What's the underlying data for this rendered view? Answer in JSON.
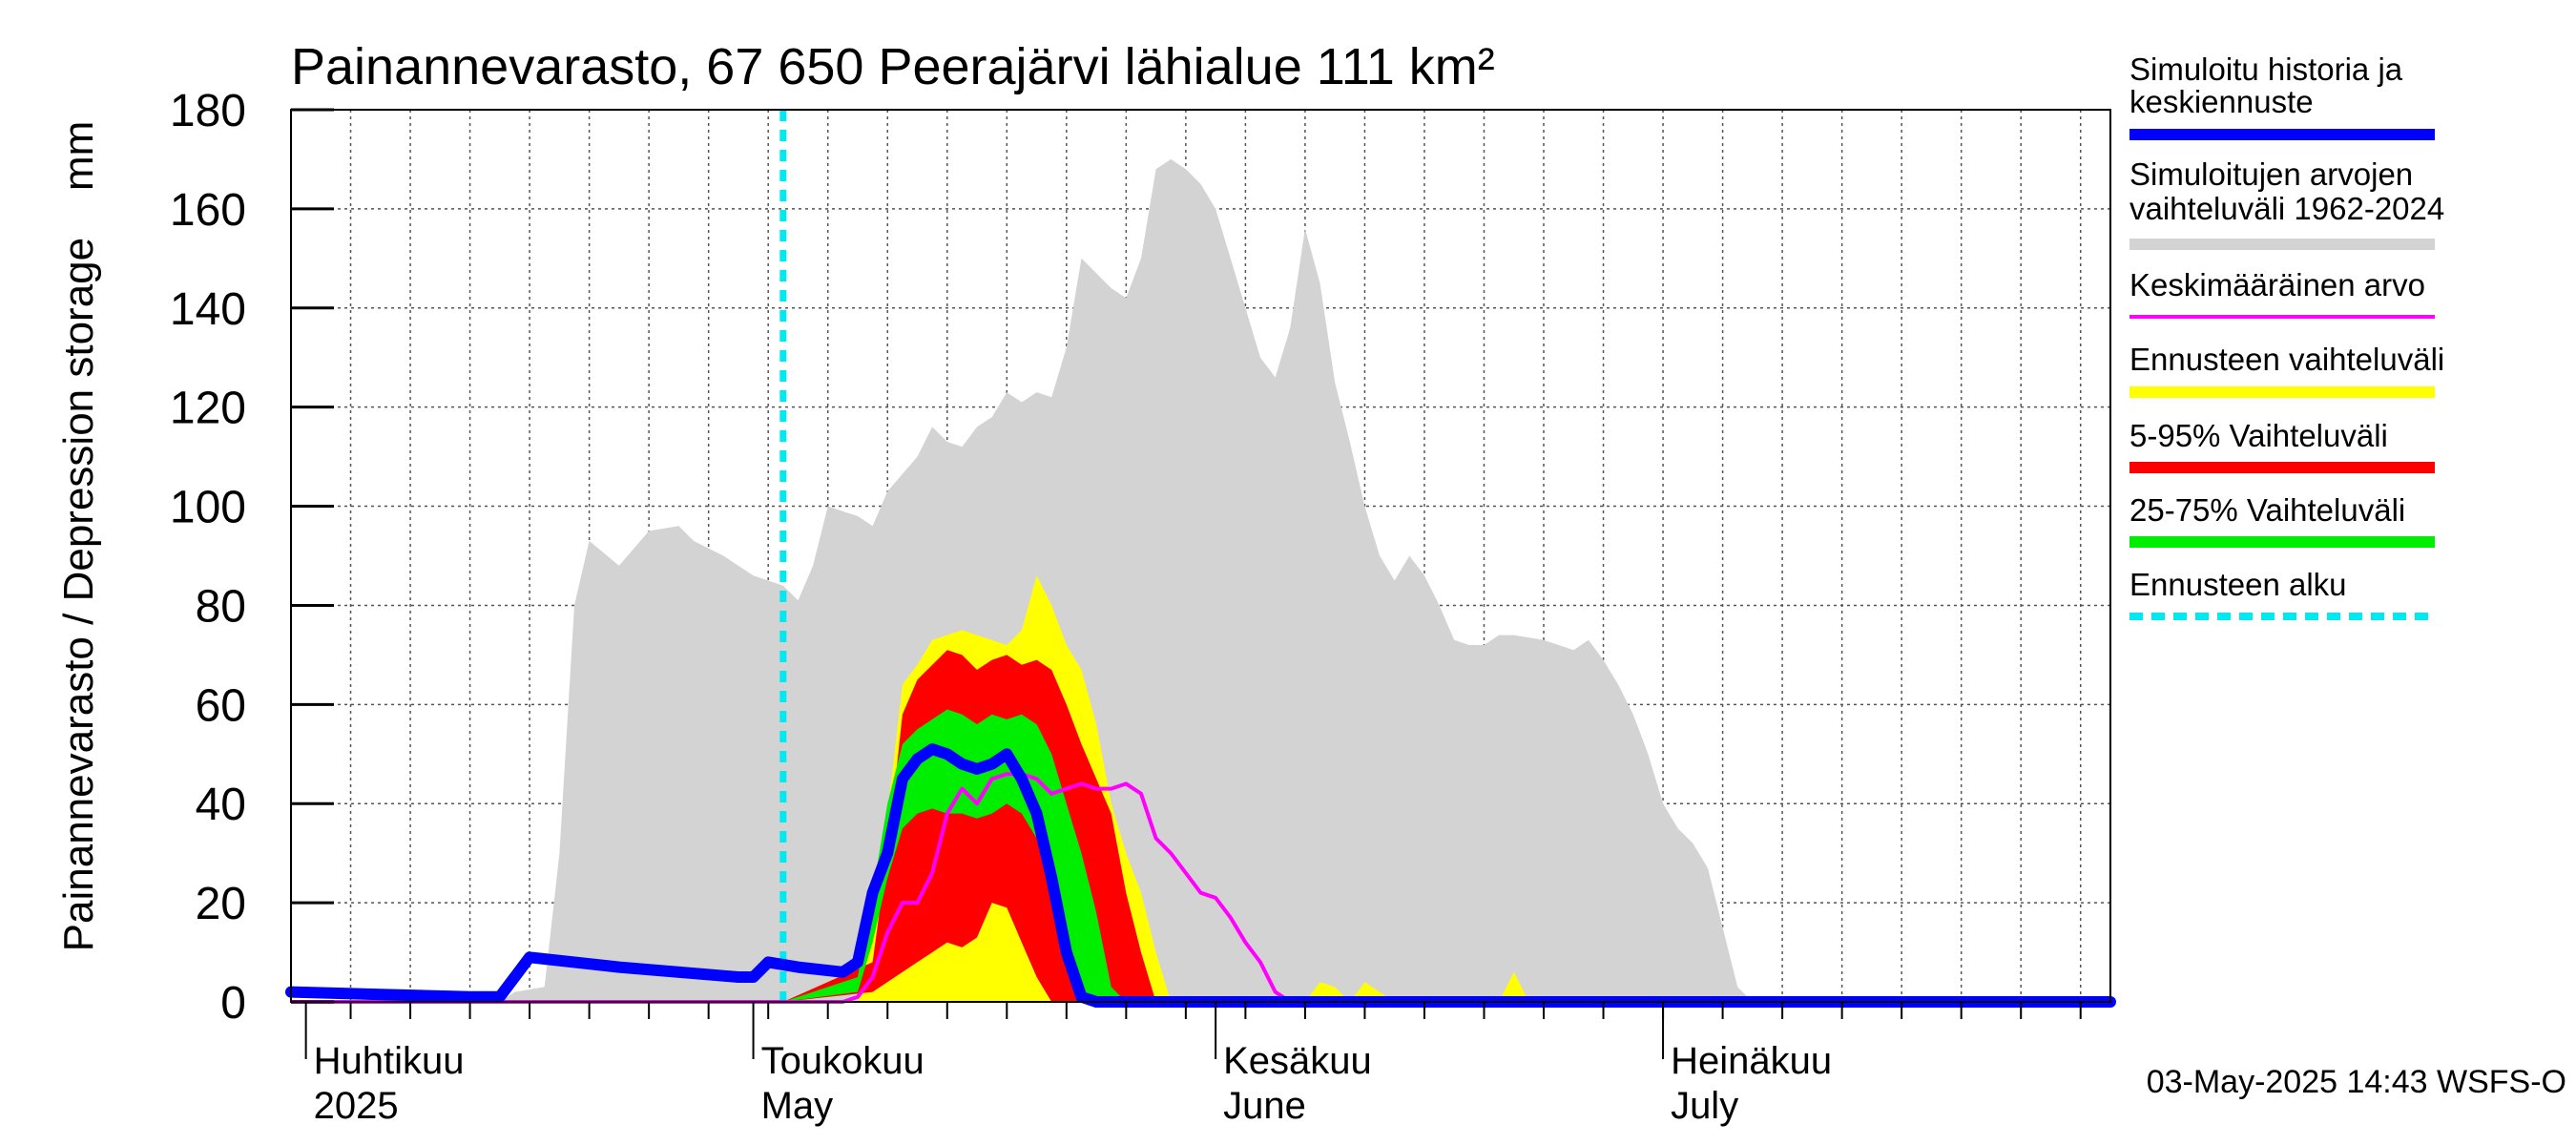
{
  "chart_data": {
    "type": "area",
    "title": "Painannevarasto, 67 650 Peerajärvi lähialue 111 km²",
    "ylabel": "Painannevarasto / Depression storage    mm",
    "ylim": [
      0,
      180
    ],
    "yticks": [
      0,
      20,
      40,
      60,
      80,
      100,
      120,
      140,
      160,
      180
    ],
    "xlim": [
      "2025-03-31",
      "2025-07-31"
    ],
    "grid": true,
    "legend_position": "right",
    "colors": {
      "history": "#0000ff",
      "range": "#d3d3d3",
      "mean": "#ff00ff",
      "forecast_range": "#ffff00",
      "p5_95": "#ff0000",
      "p25_75": "#00ee00",
      "forecast_start": "#00e8f0"
    },
    "month_labels": [
      {
        "date": "2025-04-01",
        "fi": "Huhtikuu",
        "en": "2025"
      },
      {
        "date": "2025-05-01",
        "fi": "Toukokuu",
        "en": "May"
      },
      {
        "date": "2025-06-01",
        "fi": "Kesäkuu",
        "en": "June"
      },
      {
        "date": "2025-07-01",
        "fi": "Heinäkuu",
        "en": "July"
      }
    ],
    "legend": [
      {
        "label": "Simuloitu historia ja keskiennuste",
        "style": "history"
      },
      {
        "label": "Simuloitujen arvojen vaihteluväli 1962-2024",
        "style": "range"
      },
      {
        "label": "Keskimääräinen arvo",
        "style": "mean"
      },
      {
        "label": "Ennusteen vaihteluväli",
        "style": "forecast_range"
      },
      {
        "label": "5-95% Vaihteluväli",
        "style": "p5_95"
      },
      {
        "label": "25-75% Vaihteluväli",
        "style": "p25_75"
      },
      {
        "label": "Ennusteen alku",
        "style": "forecast_start"
      }
    ],
    "forecast_start": "2025-05-03",
    "series": {
      "range_max": [
        [
          "2025-03-31",
          0
        ],
        [
          "2025-04-14",
          0
        ],
        [
          "2025-04-15",
          2
        ],
        [
          "2025-04-17",
          3
        ],
        [
          "2025-04-18",
          30
        ],
        [
          "2025-04-19",
          80
        ],
        [
          "2025-04-20",
          93
        ],
        [
          "2025-04-22",
          88
        ],
        [
          "2025-04-24",
          95
        ],
        [
          "2025-04-26",
          96
        ],
        [
          "2025-04-27",
          93
        ],
        [
          "2025-04-29",
          90
        ],
        [
          "2025-05-01",
          86
        ],
        [
          "2025-05-03",
          84
        ],
        [
          "2025-05-04",
          81
        ],
        [
          "2025-05-05",
          88
        ],
        [
          "2025-05-06",
          100
        ],
        [
          "2025-05-08",
          98
        ],
        [
          "2025-05-09",
          96
        ],
        [
          "2025-05-10",
          103
        ],
        [
          "2025-05-12",
          110
        ],
        [
          "2025-05-13",
          116
        ],
        [
          "2025-05-14",
          113
        ],
        [
          "2025-05-15",
          112
        ],
        [
          "2025-05-16",
          116
        ],
        [
          "2025-05-17",
          118
        ],
        [
          "2025-05-18",
          123
        ],
        [
          "2025-05-19",
          121
        ],
        [
          "2025-05-20",
          123
        ],
        [
          "2025-05-21",
          122
        ],
        [
          "2025-05-22",
          132
        ],
        [
          "2025-05-23",
          150
        ],
        [
          "2025-05-24",
          147
        ],
        [
          "2025-05-25",
          144
        ],
        [
          "2025-05-26",
          142
        ],
        [
          "2025-05-27",
          150
        ],
        [
          "2025-05-28",
          168
        ],
        [
          "2025-05-29",
          170
        ],
        [
          "2025-05-30",
          168
        ],
        [
          "2025-05-31",
          165
        ],
        [
          "2025-06-01",
          160
        ],
        [
          "2025-06-02",
          150
        ],
        [
          "2025-06-03",
          140
        ],
        [
          "2025-06-04",
          130
        ],
        [
          "2025-06-05",
          126
        ],
        [
          "2025-06-06",
          136
        ],
        [
          "2025-06-07",
          156
        ],
        [
          "2025-06-08",
          145
        ],
        [
          "2025-06-09",
          125
        ],
        [
          "2025-06-10",
          113
        ],
        [
          "2025-06-11",
          100
        ],
        [
          "2025-06-12",
          90
        ],
        [
          "2025-06-13",
          85
        ],
        [
          "2025-06-14",
          90
        ],
        [
          "2025-06-15",
          86
        ],
        [
          "2025-06-16",
          80
        ],
        [
          "2025-06-17",
          73
        ],
        [
          "2025-06-18",
          72
        ],
        [
          "2025-06-19",
          72
        ],
        [
          "2025-06-20",
          74
        ],
        [
          "2025-06-21",
          74
        ],
        [
          "2025-06-23",
          73
        ],
        [
          "2025-06-25",
          71
        ],
        [
          "2025-06-26",
          73
        ],
        [
          "2025-06-27",
          69
        ],
        [
          "2025-06-28",
          64
        ],
        [
          "2025-06-29",
          58
        ],
        [
          "2025-06-30",
          50
        ],
        [
          "2025-07-01",
          40
        ],
        [
          "2025-07-02",
          35
        ],
        [
          "2025-07-03",
          32
        ],
        [
          "2025-07-04",
          27
        ],
        [
          "2025-07-05",
          15
        ],
        [
          "2025-07-06",
          3
        ],
        [
          "2025-07-07",
          0
        ],
        [
          "2025-07-31",
          0
        ]
      ],
      "forecast_max": [
        [
          "2025-05-03",
          0
        ],
        [
          "2025-05-08",
          0
        ],
        [
          "2025-05-09",
          15
        ],
        [
          "2025-05-10",
          38
        ],
        [
          "2025-05-11",
          64
        ],
        [
          "2025-05-12",
          68
        ],
        [
          "2025-05-13",
          73
        ],
        [
          "2025-05-15",
          75
        ],
        [
          "2025-05-16",
          74
        ],
        [
          "2025-05-18",
          72
        ],
        [
          "2025-05-19",
          75
        ],
        [
          "2025-05-20",
          86
        ],
        [
          "2025-05-21",
          80
        ],
        [
          "2025-05-22",
          72
        ],
        [
          "2025-05-23",
          67
        ],
        [
          "2025-05-24",
          56
        ],
        [
          "2025-05-25",
          40
        ],
        [
          "2025-05-26",
          30
        ],
        [
          "2025-05-27",
          22
        ],
        [
          "2025-05-28",
          10
        ],
        [
          "2025-05-29",
          0
        ],
        [
          "2025-06-07",
          0
        ],
        [
          "2025-06-08",
          4
        ],
        [
          "2025-06-09",
          3
        ],
        [
          "2025-06-10",
          0
        ],
        [
          "2025-06-11",
          4
        ],
        [
          "2025-06-12",
          2
        ],
        [
          "2025-06-13",
          0
        ],
        [
          "2025-06-20",
          0
        ],
        [
          "2025-06-21",
          6
        ],
        [
          "2025-06-22",
          0
        ]
      ],
      "forecast_min": [
        [
          "2025-05-03",
          0
        ],
        [
          "2025-05-20",
          0
        ],
        [
          "2025-05-19",
          0
        ],
        [
          "2025-05-17",
          0
        ]
      ],
      "p95": [
        [
          "2025-05-03",
          0
        ],
        [
          "2025-05-09",
          8
        ],
        [
          "2025-05-10",
          30
        ],
        [
          "2025-05-11",
          58
        ],
        [
          "2025-05-12",
          65
        ],
        [
          "2025-05-14",
          71
        ],
        [
          "2025-05-15",
          70
        ],
        [
          "2025-05-16",
          67
        ],
        [
          "2025-05-17",
          69
        ],
        [
          "2025-05-18",
          70
        ],
        [
          "2025-05-19",
          68
        ],
        [
          "2025-05-20",
          69
        ],
        [
          "2025-05-21",
          67
        ],
        [
          "2025-05-22",
          60
        ],
        [
          "2025-05-23",
          52
        ],
        [
          "2025-05-24",
          45
        ],
        [
          "2025-05-25",
          38
        ],
        [
          "2025-05-26",
          22
        ],
        [
          "2025-05-27",
          10
        ],
        [
          "2025-05-28",
          0
        ]
      ],
      "p5": [
        [
          "2025-05-03",
          0
        ],
        [
          "2025-05-09",
          2
        ],
        [
          "2025-05-11",
          6
        ],
        [
          "2025-05-12",
          8
        ],
        [
          "2025-05-14",
          12
        ],
        [
          "2025-05-15",
          11
        ],
        [
          "2025-05-16",
          13
        ],
        [
          "2025-05-17",
          20
        ],
        [
          "2025-05-18",
          19
        ],
        [
          "2025-05-19",
          12
        ],
        [
          "2025-05-20",
          5
        ],
        [
          "2025-05-21",
          0
        ]
      ],
      "p75": [
        [
          "2025-05-03",
          0
        ],
        [
          "2025-05-08",
          5
        ],
        [
          "2025-05-09",
          22
        ],
        [
          "2025-05-10",
          40
        ],
        [
          "2025-05-11",
          52
        ],
        [
          "2025-05-12",
          55
        ],
        [
          "2025-05-13",
          57
        ],
        [
          "2025-05-14",
          59
        ],
        [
          "2025-05-15",
          58
        ],
        [
          "2025-05-16",
          56
        ],
        [
          "2025-05-17",
          58
        ],
        [
          "2025-05-18",
          57
        ],
        [
          "2025-05-19",
          58
        ],
        [
          "2025-05-20",
          56
        ],
        [
          "2025-05-21",
          50
        ],
        [
          "2025-05-22",
          40
        ],
        [
          "2025-05-23",
          30
        ],
        [
          "2025-05-24",
          18
        ],
        [
          "2025-05-25",
          3
        ],
        [
          "2025-05-26",
          0
        ]
      ],
      "p25": [
        [
          "2025-05-03",
          0
        ],
        [
          "2025-05-08",
          2
        ],
        [
          "2025-05-09",
          12
        ],
        [
          "2025-05-10",
          25
        ],
        [
          "2025-05-11",
          35
        ],
        [
          "2025-05-12",
          38
        ],
        [
          "2025-05-13",
          39
        ],
        [
          "2025-05-14",
          38
        ],
        [
          "2025-05-15",
          38
        ],
        [
          "2025-05-16",
          37
        ],
        [
          "2025-05-17",
          38
        ],
        [
          "2025-05-18",
          40
        ],
        [
          "2025-05-19",
          38
        ],
        [
          "2025-05-20",
          33
        ],
        [
          "2025-05-21",
          22
        ],
        [
          "2025-05-22",
          10
        ],
        [
          "2025-05-23",
          0
        ]
      ],
      "history": [
        [
          "2025-03-31",
          2
        ],
        [
          "2025-04-12",
          1
        ],
        [
          "2025-04-14",
          1
        ],
        [
          "2025-04-16",
          9
        ],
        [
          "2025-04-22",
          7
        ],
        [
          "2025-04-30",
          5
        ],
        [
          "2025-05-01",
          5
        ],
        [
          "2025-05-02",
          8
        ],
        [
          "2025-05-04",
          7
        ],
        [
          "2025-05-07",
          6
        ],
        [
          "2025-05-08",
          8
        ],
        [
          "2025-05-09",
          22
        ],
        [
          "2025-05-10",
          30
        ],
        [
          "2025-05-11",
          45
        ],
        [
          "2025-05-12",
          49
        ],
        [
          "2025-05-13",
          51
        ],
        [
          "2025-05-14",
          50
        ],
        [
          "2025-05-15",
          48
        ],
        [
          "2025-05-16",
          47
        ],
        [
          "2025-05-17",
          48
        ],
        [
          "2025-05-18",
          50
        ],
        [
          "2025-05-19",
          45
        ],
        [
          "2025-05-20",
          38
        ],
        [
          "2025-05-21",
          25
        ],
        [
          "2025-05-22",
          10
        ],
        [
          "2025-05-23",
          1
        ],
        [
          "2025-05-24",
          0
        ],
        [
          "2025-07-31",
          0
        ]
      ],
      "mean": [
        [
          "2025-03-31",
          0
        ],
        [
          "2025-05-07",
          0
        ],
        [
          "2025-05-08",
          1
        ],
        [
          "2025-05-09",
          5
        ],
        [
          "2025-05-10",
          14
        ],
        [
          "2025-05-11",
          20
        ],
        [
          "2025-05-12",
          20
        ],
        [
          "2025-05-13",
          26
        ],
        [
          "2025-05-14",
          38
        ],
        [
          "2025-05-15",
          43
        ],
        [
          "2025-05-16",
          40
        ],
        [
          "2025-05-17",
          45
        ],
        [
          "2025-05-18",
          46
        ],
        [
          "2025-05-19",
          46
        ],
        [
          "2025-05-20",
          45
        ],
        [
          "2025-05-21",
          42
        ],
        [
          "2025-05-22",
          43
        ],
        [
          "2025-05-23",
          44
        ],
        [
          "2025-05-24",
          43
        ],
        [
          "2025-05-25",
          43
        ],
        [
          "2025-05-26",
          44
        ],
        [
          "2025-05-27",
          42
        ],
        [
          "2025-05-28",
          33
        ],
        [
          "2025-05-29",
          30
        ],
        [
          "2025-05-30",
          26
        ],
        [
          "2025-05-31",
          22
        ],
        [
          "2025-06-01",
          21
        ],
        [
          "2025-06-02",
          17
        ],
        [
          "2025-06-03",
          12
        ],
        [
          "2025-06-04",
          8
        ],
        [
          "2025-06-05",
          2
        ],
        [
          "2025-06-06",
          0
        ],
        [
          "2025-07-31",
          0
        ]
      ]
    }
  },
  "footer": {
    "timestamp": "03-May-2025 14:43 WSFS-O"
  }
}
